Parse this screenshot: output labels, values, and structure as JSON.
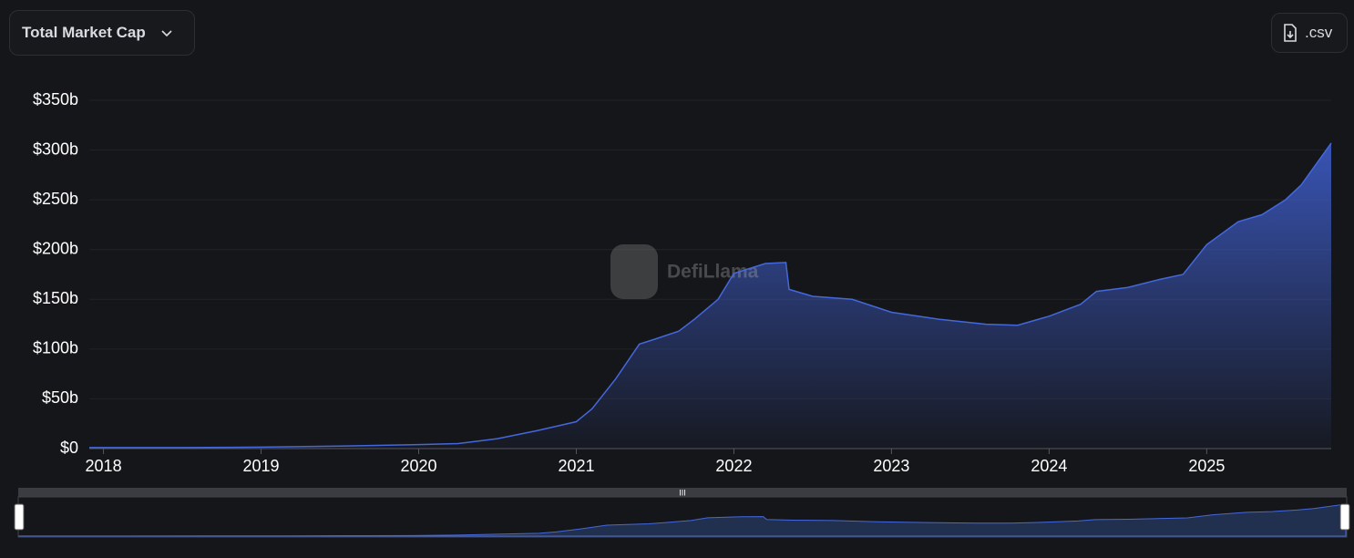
{
  "controls": {
    "metric_select": "Total Market Cap",
    "csv_button": ".csv"
  },
  "watermark": "DefiLlama",
  "chart_data": {
    "type": "area",
    "color": "#4468dc",
    "grid": true,
    "x": [
      2017.91,
      2018.5,
      2019.0,
      2019.5,
      2020.0,
      2020.25,
      2020.5,
      2020.75,
      2021.0,
      2021.1,
      2021.25,
      2021.4,
      2021.5,
      2021.65,
      2021.75,
      2021.9,
      2022.0,
      2022.2,
      2022.33,
      2022.35,
      2022.5,
      2022.75,
      2023.0,
      2023.3,
      2023.6,
      2023.8,
      2024.0,
      2024.2,
      2024.3,
      2024.5,
      2024.7,
      2024.85,
      2025.0,
      2025.2,
      2025.35,
      2025.5,
      2025.6,
      2025.79
    ],
    "values": [
      1,
      1,
      1.5,
      2.5,
      4,
      5,
      10,
      18,
      27,
      40,
      70,
      105,
      110,
      118,
      130,
      150,
      176,
      186,
      187,
      160,
      153,
      150,
      137,
      130,
      125,
      124,
      133,
      145,
      158,
      162,
      170,
      175,
      205,
      228,
      235,
      250,
      265,
      307
    ],
    "xlim": [
      2017.91,
      2025.79
    ],
    "xticks": [
      2018,
      2019,
      2020,
      2021,
      2022,
      2023,
      2024,
      2025
    ],
    "ylim": [
      0,
      350
    ],
    "yticks": [
      {
        "value": 0,
        "label": "$0"
      },
      {
        "value": 50,
        "label": "$50b"
      },
      {
        "value": 100,
        "label": "$100b"
      },
      {
        "value": 150,
        "label": "$150b"
      },
      {
        "value": 200,
        "label": "$200b"
      },
      {
        "value": 250,
        "label": "$250b"
      },
      {
        "value": 300,
        "label": "$300b"
      },
      {
        "value": 350,
        "label": "$350b"
      }
    ]
  }
}
